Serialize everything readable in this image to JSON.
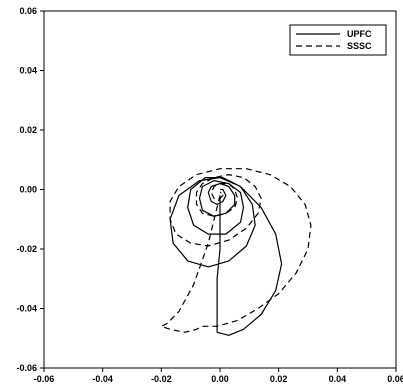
{
  "chart_data": {
    "type": "line",
    "title": "",
    "xlabel": "",
    "ylabel": "",
    "xlim": [
      -0.06,
      0.06
    ],
    "ylim": [
      -0.06,
      0.06
    ],
    "x_ticks": [
      "-0.06",
      "-0.04",
      "-0.02",
      "0.00",
      "0.02",
      "0.04",
      "0.06"
    ],
    "y_ticks": [
      "-0.06",
      "-0.04",
      "-0.02",
      "0.00",
      "0.02",
      "0.04",
      "0.06"
    ],
    "grid": false,
    "legend_position": "top-right",
    "series": [
      {
        "name": "UPFC",
        "style": "solid",
        "color": "#000000",
        "points": [
          [
            0.0,
            -0.002
          ],
          [
            0.0,
            -0.01
          ],
          [
            0.0,
            -0.02
          ],
          [
            -0.001,
            -0.03
          ],
          [
            -0.001,
            -0.04
          ],
          [
            -0.001,
            -0.048
          ],
          [
            0.003,
            -0.049
          ],
          [
            0.008,
            -0.047
          ],
          [
            0.014,
            -0.042
          ],
          [
            0.019,
            -0.034
          ],
          [
            0.021,
            -0.025
          ],
          [
            0.019,
            -0.015
          ],
          [
            0.014,
            -0.006
          ],
          [
            0.007,
            0.001
          ],
          [
            0.0,
            0.004
          ],
          [
            -0.007,
            0.003
          ],
          [
            -0.014,
            -0.002
          ],
          [
            -0.017,
            -0.01
          ],
          [
            -0.016,
            -0.018
          ],
          [
            -0.011,
            -0.024
          ],
          [
            -0.004,
            -0.026
          ],
          [
            0.003,
            -0.024
          ],
          [
            0.009,
            -0.019
          ],
          [
            0.012,
            -0.012
          ],
          [
            0.011,
            -0.005
          ],
          [
            0.007,
            0.001
          ],
          [
            0.001,
            0.004
          ],
          [
            -0.005,
            0.004
          ],
          [
            -0.01,
            0.0
          ],
          [
            -0.011,
            -0.006
          ],
          [
            -0.009,
            -0.012
          ],
          [
            -0.004,
            -0.015
          ],
          [
            0.002,
            -0.015
          ],
          [
            0.007,
            -0.011
          ],
          [
            0.008,
            -0.006
          ],
          [
            0.007,
            -0.001
          ],
          [
            0.003,
            0.002
          ],
          [
            -0.002,
            0.003
          ],
          [
            -0.006,
            0.001
          ],
          [
            -0.007,
            -0.003
          ],
          [
            -0.006,
            -0.007
          ],
          [
            -0.002,
            -0.009
          ],
          [
            0.002,
            -0.008
          ],
          [
            0.005,
            -0.005
          ],
          [
            0.005,
            -0.002
          ],
          [
            0.003,
            0.001
          ],
          [
            0.0,
            0.002
          ],
          [
            -0.003,
            0.001
          ],
          [
            -0.004,
            -0.001
          ],
          [
            -0.003,
            -0.004
          ],
          [
            -0.001,
            -0.005
          ],
          [
            0.001,
            -0.004
          ],
          [
            0.002,
            -0.002
          ],
          [
            0.001,
            0.0
          ],
          [
            0.0,
            0.0
          ]
        ]
      },
      {
        "name": "SSSC",
        "style": "dashed",
        "color": "#000000",
        "points": [
          [
            0.0,
            -0.002
          ],
          [
            -0.004,
            -0.018
          ],
          [
            -0.009,
            -0.032
          ],
          [
            -0.014,
            -0.041
          ],
          [
            -0.018,
            -0.045
          ],
          [
            -0.02,
            -0.046
          ],
          [
            -0.017,
            -0.047
          ],
          [
            -0.012,
            -0.048
          ],
          [
            -0.008,
            -0.047
          ],
          [
            -0.006,
            -0.046
          ],
          [
            -0.001,
            -0.046
          ],
          [
            0.006,
            -0.044
          ],
          [
            0.013,
            -0.04
          ],
          [
            0.02,
            -0.035
          ],
          [
            0.026,
            -0.028
          ],
          [
            0.03,
            -0.02
          ],
          [
            0.031,
            -0.012
          ],
          [
            0.029,
            -0.005
          ],
          [
            0.024,
            0.001
          ],
          [
            0.017,
            0.005
          ],
          [
            0.009,
            0.007
          ],
          [
            0.0,
            0.007
          ],
          [
            -0.008,
            0.005
          ],
          [
            -0.014,
            0.001
          ],
          [
            -0.017,
            -0.004
          ],
          [
            -0.017,
            -0.01
          ],
          [
            -0.015,
            -0.015
          ],
          [
            -0.01,
            -0.018
          ],
          [
            -0.004,
            -0.019
          ],
          [
            0.003,
            -0.017
          ],
          [
            0.009,
            -0.013
          ],
          [
            0.013,
            -0.008
          ],
          [
            0.014,
            -0.003
          ],
          [
            0.012,
            0.001
          ],
          [
            0.008,
            0.004
          ],
          [
            0.003,
            0.005
          ],
          [
            -0.002,
            0.004
          ],
          [
            -0.006,
            0.002
          ],
          [
            -0.008,
            -0.001
          ],
          [
            -0.008,
            -0.005
          ],
          [
            -0.006,
            -0.008
          ],
          [
            -0.002,
            -0.009
          ],
          [
            0.002,
            -0.008
          ],
          [
            0.005,
            -0.006
          ],
          [
            0.006,
            -0.003
          ],
          [
            0.005,
            0.0
          ],
          [
            0.003,
            0.002
          ],
          [
            0.0,
            0.002
          ],
          [
            -0.002,
            0.001
          ],
          [
            -0.003,
            -0.001
          ],
          [
            -0.002,
            -0.003
          ],
          [
            0.0,
            -0.003
          ],
          [
            0.001,
            -0.002
          ],
          [
            0.001,
            -0.001
          ],
          [
            0.0,
            -0.001
          ]
        ]
      }
    ]
  }
}
